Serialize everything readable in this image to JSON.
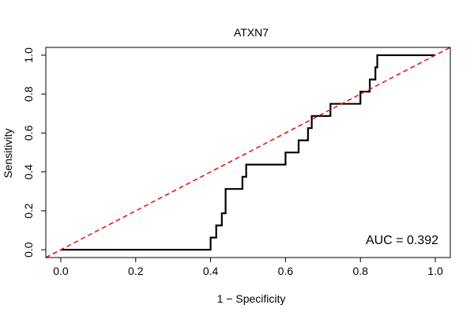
{
  "chart_data": {
    "type": "line",
    "title": "ATXN7",
    "xlabel": "1 − Specificity",
    "ylabel": "Sensitivity",
    "xlim": [
      -0.04,
      1.04
    ],
    "ylim": [
      -0.04,
      1.04
    ],
    "x_ticks": [
      0.0,
      0.2,
      0.4,
      0.6,
      0.8,
      1.0
    ],
    "x_tick_labels": [
      "0.0",
      "0.2",
      "0.4",
      "0.6",
      "0.8",
      "1.0"
    ],
    "y_ticks": [
      0.0,
      0.2,
      0.4,
      0.6,
      0.8,
      1.0
    ],
    "y_tick_labels": [
      "0.0",
      "0.2",
      "0.4",
      "0.6",
      "0.8",
      "1.0"
    ],
    "grid": false,
    "annotation": "AUC = 0.392",
    "series": [
      {
        "color": "#000000",
        "style": "solid",
        "x": [
          0.0,
          0.4,
          0.4,
          0.415,
          0.415,
          0.43,
          0.43,
          0.44,
          0.44,
          0.45,
          0.45,
          0.485,
          0.485,
          0.495,
          0.495,
          0.6,
          0.6,
          0.635,
          0.635,
          0.66,
          0.66,
          0.67,
          0.67,
          0.72,
          0.72,
          0.8,
          0.8,
          0.825,
          0.825,
          0.84,
          0.84,
          0.845,
          0.845,
          1.0
        ],
        "y": [
          0.0,
          0.0,
          0.0625,
          0.0625,
          0.125,
          0.125,
          0.1875,
          0.1875,
          0.3125,
          0.3125,
          0.3125,
          0.3125,
          0.375,
          0.375,
          0.4375,
          0.4375,
          0.5,
          0.5,
          0.5625,
          0.5625,
          0.625,
          0.625,
          0.6875,
          0.6875,
          0.75,
          0.75,
          0.8125,
          0.8125,
          0.875,
          0.875,
          0.9375,
          0.9375,
          1.0,
          1.0
        ]
      },
      {
        "color": "#e31a1c",
        "style": "dashed",
        "x": [
          -0.04,
          1.04
        ],
        "y": [
          -0.04,
          1.04
        ]
      }
    ]
  }
}
